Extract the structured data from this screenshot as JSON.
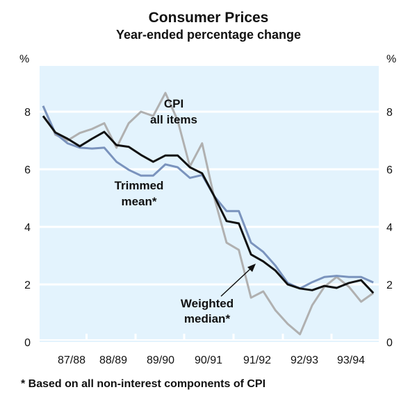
{
  "chart_data": {
    "type": "line",
    "title": "Consumer Prices",
    "subtitle": "Year-ended percentage change",
    "ylabel_left": "%",
    "ylabel_right": "%",
    "ylim": [
      0,
      9.5
    ],
    "yticks": [
      0,
      2,
      4,
      6,
      8
    ],
    "x_tick_labels": [
      "87/88",
      "88/89",
      "89/90",
      "90/91",
      "91/92",
      "92/93",
      "93/94"
    ],
    "grid": true,
    "footnote": "* Based on all non-interest components of CPI",
    "series": [
      {
        "name": "CPI all items",
        "label_lines": [
          "CPI",
          "all items"
        ],
        "color": "#b0b0b0",
        "values": [
          8.2,
          7.2,
          7.0,
          7.26,
          7.4,
          7.6,
          6.75,
          7.6,
          8.0,
          7.85,
          8.65,
          7.7,
          6.1,
          6.9,
          5.0,
          3.45,
          3.2,
          1.54,
          1.76,
          1.1,
          0.63,
          0.27,
          1.28,
          1.92,
          2.26,
          1.92,
          1.4,
          1.7
        ]
      },
      {
        "name": "Trimmed mean*",
        "label_lines": [
          "Trimmed",
          "mean*"
        ],
        "color": "#7a93bd",
        "values": [
          8.2,
          7.25,
          6.9,
          6.75,
          6.72,
          6.75,
          6.26,
          5.98,
          5.78,
          5.78,
          6.17,
          6.07,
          5.7,
          5.8,
          5.06,
          4.55,
          4.55,
          3.45,
          3.13,
          2.65,
          2.05,
          1.86,
          2.08,
          2.26,
          2.3,
          2.26,
          2.26,
          2.07
        ]
      },
      {
        "name": "Weighted median*",
        "label_lines": [
          "Weighted",
          "median*"
        ],
        "color": "#111111",
        "values": [
          7.85,
          7.28,
          7.06,
          6.8,
          7.06,
          7.3,
          6.84,
          6.78,
          6.5,
          6.26,
          6.48,
          6.48,
          6.07,
          5.86,
          5.06,
          4.2,
          4.12,
          3.04,
          2.8,
          2.48,
          2.0,
          1.86,
          1.8,
          1.95,
          1.88,
          2.05,
          2.15,
          1.7
        ]
      }
    ],
    "colors": {
      "background": "#e3f3fd",
      "grid": "#ffffff"
    }
  }
}
